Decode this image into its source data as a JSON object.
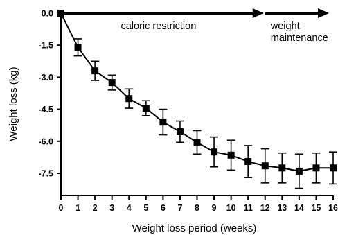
{
  "chart_data": {
    "type": "line",
    "xlabel": "Weight loss period (weeks)",
    "ylabel": "Weight loss (kg)",
    "xlim": [
      0,
      16
    ],
    "ylim": [
      -8.5,
      0
    ],
    "x_ticks": [
      "0",
      "1",
      "2",
      "3",
      "4",
      "5",
      "6",
      "7",
      "8",
      "9",
      "10",
      "11",
      "12",
      "13",
      "14",
      "15",
      "16"
    ],
    "y_ticks": [
      "0.0",
      "-1.5",
      "-3.0",
      "-4.5",
      "-6.0",
      "-7.5"
    ],
    "y_tick_values": [
      0,
      -1.5,
      -3.0,
      -4.5,
      -6.0,
      -7.5
    ],
    "grid": false,
    "series": [
      {
        "x": [
          0,
          1,
          2,
          3,
          4,
          5,
          6,
          7,
          8,
          9,
          10,
          11,
          12,
          13,
          14,
          15,
          16
        ],
        "y": [
          0.0,
          -1.6,
          -2.7,
          -3.25,
          -4.0,
          -4.45,
          -5.1,
          -5.55,
          -6.05,
          -6.5,
          -6.65,
          -6.95,
          -7.15,
          -7.25,
          -7.4,
          -7.25,
          -7.25
        ],
        "error": [
          0,
          0.4,
          0.45,
          0.35,
          0.45,
          0.35,
          0.6,
          0.5,
          0.55,
          0.7,
          0.7,
          0.75,
          0.8,
          0.7,
          0.8,
          0.7,
          0.75
        ]
      }
    ],
    "annotations": [
      {
        "text": "caloric restriction",
        "x_start": 0,
        "x_end": 12
      },
      {
        "text": "weight\nmaintenance",
        "x_start": 12,
        "x_end": 16
      }
    ]
  }
}
